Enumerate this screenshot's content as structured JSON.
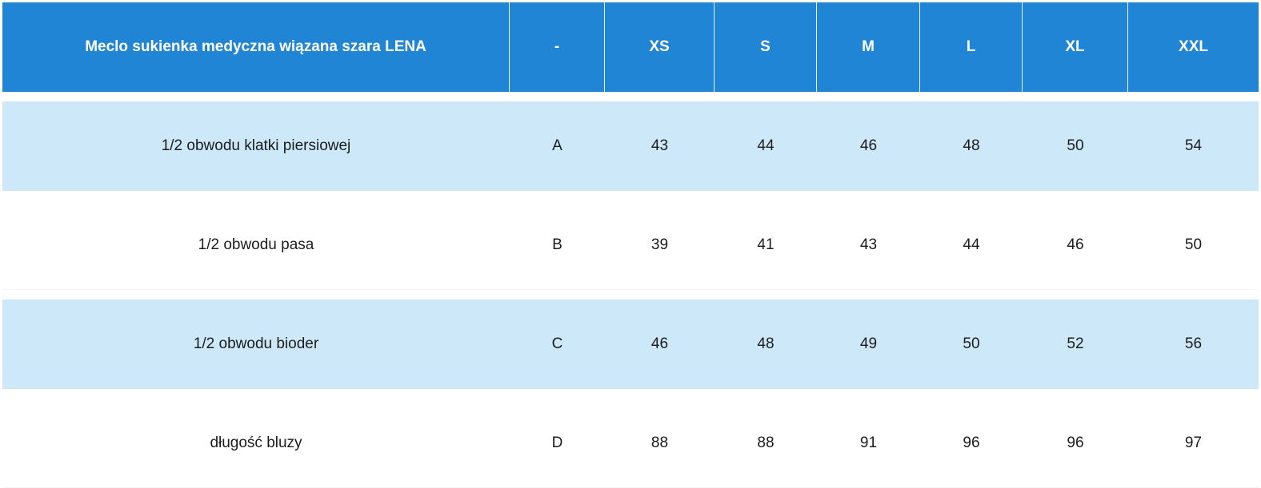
{
  "table": {
    "header": {
      "product_name": "Meclo sukienka medyczna wiązana szara LENA",
      "symbol": "-",
      "sizes": [
        "XS",
        "S",
        "M",
        "L",
        "XL",
        "XXL"
      ]
    },
    "rows": [
      {
        "measure": "1/2 obwodu klatki piersiowej",
        "symbol": "A",
        "values": [
          "43",
          "44",
          "46",
          "48",
          "50",
          "54"
        ]
      },
      {
        "measure": "1/2 obwodu pasa",
        "symbol": "B",
        "values": [
          "39",
          "41",
          "43",
          "44",
          "46",
          "50"
        ]
      },
      {
        "measure": "1/2 obwodu bioder",
        "symbol": "C",
        "values": [
          "46",
          "48",
          "49",
          "50",
          "52",
          "56"
        ]
      },
      {
        "measure": "długość bluzy",
        "symbol": "D",
        "values": [
          "88",
          "88",
          "91",
          "96",
          "96",
          "97"
        ]
      }
    ],
    "colors": {
      "header_bg": "#2185d5",
      "header_text": "#ffffff",
      "shaded_row_bg": "#cde8f9",
      "plain_row_bg": "#ffffff",
      "body_text": "#1c1c1c"
    }
  }
}
